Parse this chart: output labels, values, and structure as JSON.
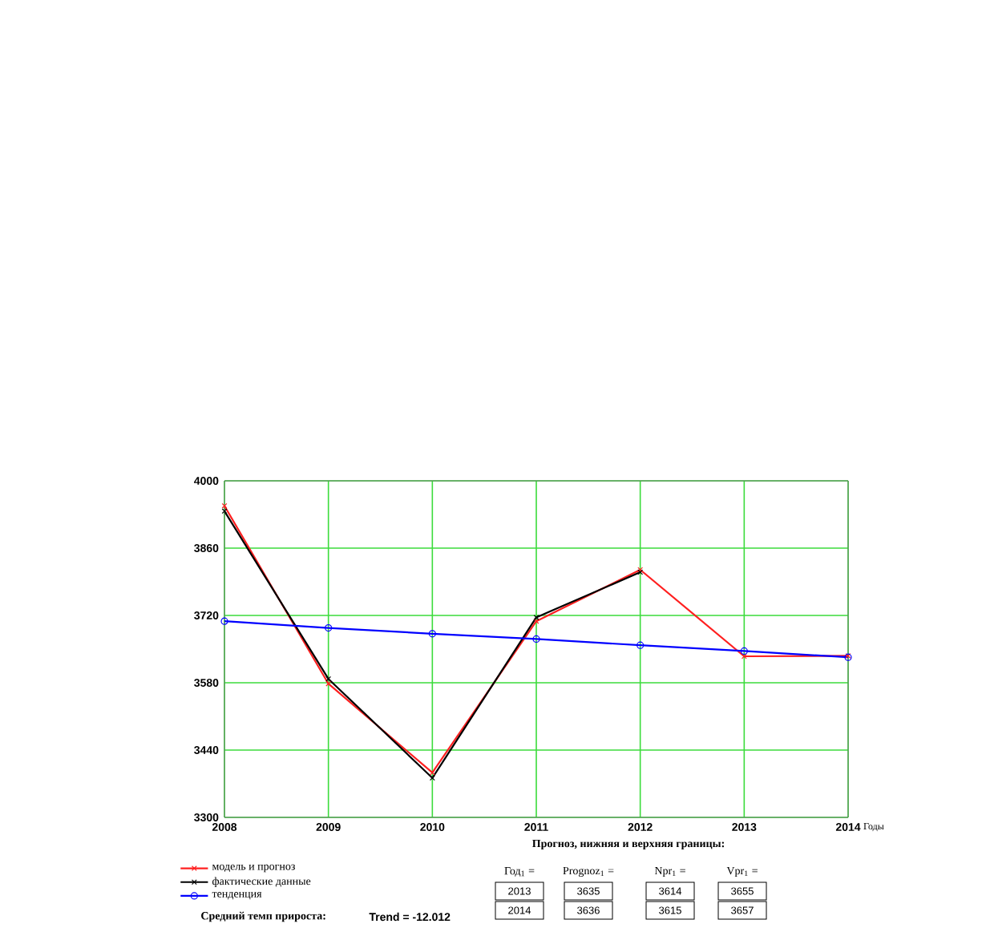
{
  "chart_data": {
    "type": "line",
    "x": [
      2008,
      2009,
      2010,
      2011,
      2012,
      2013,
      2014
    ],
    "xlim": [
      2008,
      2014
    ],
    "xticks": [
      2008,
      2009,
      2010,
      2011,
      2012,
      2013,
      2014
    ],
    "ylim": [
      3300,
      4000
    ],
    "yticks": [
      3300,
      3440,
      3580,
      3720,
      3860,
      4000
    ],
    "xlabel": "Годы",
    "grid": true,
    "legend": "bottom left",
    "series": [
      {
        "name": "модель и прогноз",
        "color": "#ff2020",
        "marker": "cross",
        "values": [
          3948,
          3578,
          3393,
          3708,
          3815,
          3635,
          3636
        ]
      },
      {
        "name": "фактические данные",
        "color": "#000000",
        "marker": "cross",
        "values": [
          3937,
          3588,
          3382,
          3716,
          3810,
          null,
          null
        ]
      },
      {
        "name": "тенденция",
        "color": "#0000ff",
        "marker": "circle",
        "values": [
          3708,
          3694,
          3682,
          3671,
          3658,
          3646,
          3633
        ]
      }
    ],
    "annotations": [
      "Средний темп прироста:",
      "Trend = -12.012",
      "Прогноз, нижняя и верхняя границы:",
      "Год$_{1}$ =",
      "Prognoz$_{1}$ =",
      "Npr$_{1}$ =",
      "Vpr$_{1}$ =",
      "2013",
      "2014",
      "3635",
      "3636",
      "3614",
      "3615",
      "3655",
      "3657"
    ]
  }
}
